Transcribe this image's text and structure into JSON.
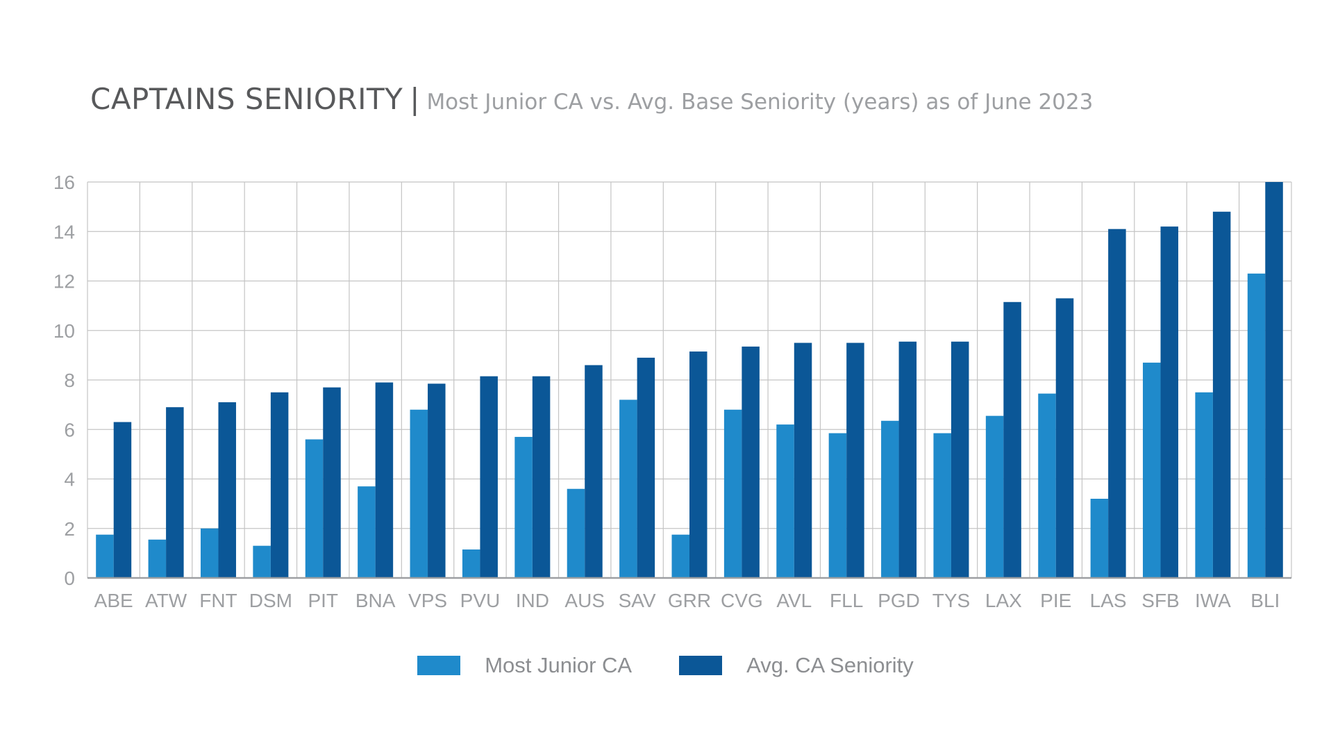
{
  "header": {
    "title": "CAPTAINS SENIORITY",
    "separator": "|",
    "subtitle": "Most Junior CA vs. Avg. Base Seniority (years) as of June 2023"
  },
  "colors": {
    "most_junior": "#1f8acb",
    "avg_seniority": "#0b5797",
    "grid": "#c4c4c4",
    "axis": "#9d9fa2",
    "tick_text": "#9d9fa2"
  },
  "chart_data": {
    "type": "bar",
    "title": "CAPTAINS SENIORITY",
    "subtitle": "Most Junior CA vs. Avg. Base Seniority (years) as of June 2023",
    "categories": [
      "ABE",
      "ATW",
      "FNT",
      "DSM",
      "PIT",
      "BNA",
      "VPS",
      "PVU",
      "IND",
      "AUS",
      "SAV",
      "GRR",
      "CVG",
      "AVL",
      "FLL",
      "PGD",
      "TYS",
      "LAX",
      "PIE",
      "LAS",
      "SFB",
      "IWA",
      "BLI"
    ],
    "series": [
      {
        "name": "Most Junior CA",
        "values": [
          1.75,
          1.55,
          2.0,
          1.3,
          5.6,
          3.7,
          6.8,
          1.15,
          5.7,
          3.6,
          7.2,
          1.75,
          6.8,
          6.2,
          5.85,
          6.35,
          5.85,
          6.55,
          7.45,
          3.2,
          8.7,
          7.5,
          12.3
        ]
      },
      {
        "name": "Avg. CA Seniority",
        "values": [
          6.3,
          6.9,
          7.1,
          7.5,
          7.7,
          7.9,
          7.85,
          8.15,
          8.15,
          8.6,
          8.9,
          9.15,
          9.35,
          9.5,
          9.5,
          9.55,
          9.55,
          11.15,
          11.3,
          14.1,
          14.2,
          14.8,
          16.0
        ]
      }
    ],
    "ylim": [
      0,
      16
    ],
    "yticks": [
      0,
      2,
      4,
      6,
      8,
      10,
      12,
      14,
      16
    ],
    "xlabel": "",
    "ylabel": "",
    "grid": true,
    "legend_position": "bottom-center"
  }
}
